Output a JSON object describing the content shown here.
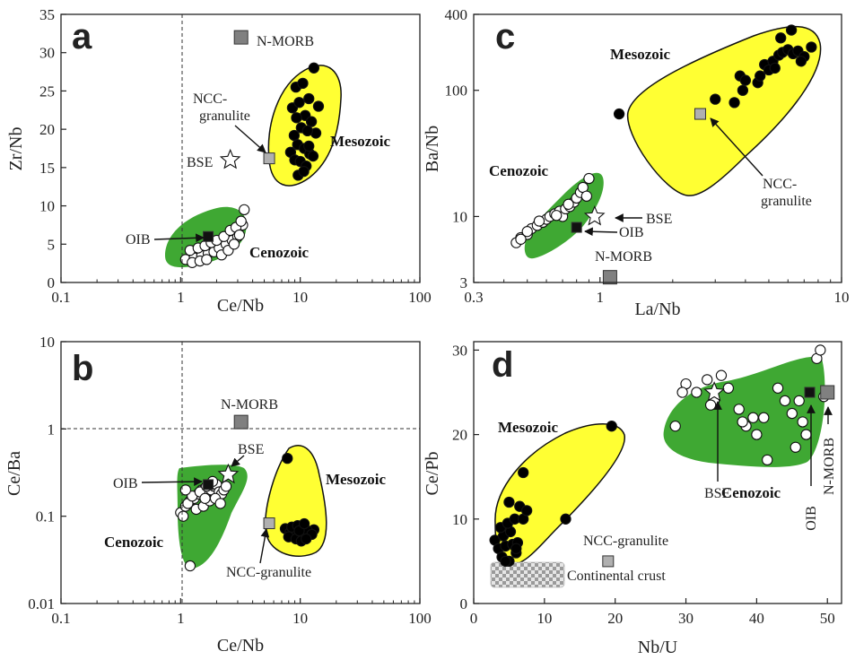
{
  "chart_data": [
    {
      "panel": "a",
      "type": "scatter",
      "xlabel": "Ce/Nb",
      "ylabel": "Zr/Nb",
      "xscale": "log",
      "xlim": [
        0.1,
        100
      ],
      "ylim": [
        0,
        35
      ],
      "x_ticks": [
        "0.1",
        "1",
        "10",
        "100"
      ],
      "y_ticks": [
        "0",
        "5",
        "10",
        "15",
        "20",
        "25",
        "30",
        "35"
      ],
      "reference_lines": [
        {
          "axis": "x",
          "value": 1
        }
      ],
      "series": [
        {
          "name": "Mesozoic",
          "fill": "#000000",
          "x": [
            9.2,
            10.5,
            11.8,
            8.6,
            9.8,
            11.0,
            12.4,
            13.5,
            8.9,
            10.2,
            11.5,
            9.5,
            10.8,
            12.0,
            8.3,
            9.0,
            10.0,
            11.2,
            9.6,
            10.7,
            12.8,
            14.2,
            13.0,
            9.3,
            11.8
          ],
          "y": [
            25.5,
            26.0,
            24.0,
            22.8,
            23.5,
            21.8,
            21.0,
            19.5,
            19.2,
            20.2,
            19.8,
            18.0,
            17.5,
            16.8,
            17.0,
            16.0,
            15.8,
            15.2,
            14.0,
            14.5,
            16.5,
            23.0,
            28.0,
            21.5,
            17.8
          ]
        },
        {
          "name": "Cenozoic",
          "fill": "#ffffff",
          "x": [
            1.1,
            1.3,
            1.5,
            1.7,
            1.9,
            2.1,
            2.4,
            2.7,
            3.0,
            3.3,
            1.2,
            1.4,
            1.6,
            1.8,
            2.0,
            2.3,
            2.6,
            2.9,
            3.2,
            1.25,
            1.45,
            1.65,
            2.2,
            2.5,
            2.8,
            3.1,
            3.4
          ],
          "y": [
            3.0,
            3.2,
            3.5,
            3.8,
            4.0,
            4.5,
            5.0,
            5.5,
            6.0,
            7.5,
            4.2,
            4.5,
            4.8,
            5.2,
            5.5,
            6.0,
            6.8,
            7.2,
            8.0,
            2.6,
            2.8,
            3.0,
            3.6,
            4.2,
            5.0,
            6.2,
            9.5
          ]
        }
      ],
      "references": [
        {
          "label": "N-MORB",
          "x": 3.2,
          "y": 32,
          "marker": "square",
          "fill": "#808080"
        },
        {
          "label": "NCC-granulite",
          "x": 5.5,
          "y": 16.2,
          "marker": "square",
          "fill": "#b0b0b0"
        },
        {
          "label": "BSE",
          "x": 2.6,
          "y": 16.0,
          "marker": "star",
          "fill": "#ffffff"
        },
        {
          "label": "OIB",
          "x": 1.7,
          "y": 6.0,
          "marker": "square",
          "fill": "#111111"
        }
      ],
      "regions": [
        "Mesozoic",
        "Cenozoic"
      ]
    },
    {
      "panel": "b",
      "type": "scatter",
      "xlabel": "Ce/Nb",
      "ylabel": "Ce/Ba",
      "xscale": "log",
      "yscale": "log",
      "xlim": [
        0.1,
        100
      ],
      "ylim": [
        0.01,
        10
      ],
      "x_ticks": [
        "0.1",
        "1",
        "10",
        "100"
      ],
      "y_ticks": [
        "0.01",
        "0.1",
        "1",
        "10"
      ],
      "reference_lines": [
        {
          "axis": "x",
          "value": 1
        },
        {
          "axis": "y",
          "value": 1
        }
      ],
      "series": [
        {
          "name": "Mesozoic",
          "fill": "#000000",
          "x": [
            7.5,
            8.2,
            9.0,
            10.0,
            11.0,
            12.0,
            13.0,
            8.5,
            9.5,
            10.5,
            11.5,
            12.5,
            8.0,
            9.2,
            10.2,
            11.2,
            9.8,
            10.8,
            7.8
          ],
          "y": [
            0.072,
            0.065,
            0.062,
            0.058,
            0.06,
            0.065,
            0.07,
            0.075,
            0.078,
            0.072,
            0.068,
            0.062,
            0.058,
            0.055,
            0.052,
            0.055,
            0.068,
            0.082,
            0.46
          ]
        },
        {
          "name": "Cenozoic",
          "fill": "#ffffff",
          "x": [
            1.0,
            1.1,
            1.2,
            1.3,
            1.4,
            1.5,
            1.6,
            1.7,
            1.8,
            1.9,
            2.0,
            2.1,
            2.2,
            2.3,
            2.4,
            1.05,
            1.15,
            1.35,
            1.55,
            1.75,
            1.95,
            2.15,
            1.25,
            1.45,
            1.65,
            1.85,
            1.1,
            1.6,
            1.2
          ],
          "y": [
            0.11,
            0.13,
            0.15,
            0.16,
            0.18,
            0.2,
            0.21,
            0.19,
            0.2,
            0.22,
            0.23,
            0.19,
            0.18,
            0.2,
            0.22,
            0.1,
            0.14,
            0.12,
            0.13,
            0.15,
            0.16,
            0.14,
            0.17,
            0.19,
            0.22,
            0.25,
            0.2,
            0.16,
            0.027
          ]
        }
      ],
      "references": [
        {
          "label": "N-MORB",
          "x": 3.2,
          "y": 1.2,
          "marker": "square",
          "fill": "#808080"
        },
        {
          "label": "BSE",
          "x": 2.5,
          "y": 0.3,
          "marker": "star",
          "fill": "#ffffff"
        },
        {
          "label": "OIB",
          "x": 1.7,
          "y": 0.23,
          "marker": "square",
          "fill": "#111111"
        },
        {
          "label": "NCC-granulite",
          "x": 5.5,
          "y": 0.083,
          "marker": "square",
          "fill": "#b0b0b0"
        }
      ],
      "regions": [
        "Mesozoic",
        "Cenozoic"
      ]
    },
    {
      "panel": "c",
      "type": "scatter",
      "xlabel": "La/Nb",
      "ylabel": "Ba/Nb",
      "xscale": "log",
      "yscale": "log",
      "xlim": [
        0.3,
        10
      ],
      "ylim": [
        3,
        400
      ],
      "x_ticks": [
        "0.3",
        "1",
        "10"
      ],
      "y_ticks": [
        "3",
        "10",
        "100",
        "400"
      ],
      "series": [
        {
          "name": "Mesozoic",
          "fill": "#000000",
          "x": [
            1.2,
            3.0,
            3.6,
            3.8,
            4.0,
            4.5,
            4.8,
            5.0,
            5.2,
            5.5,
            5.7,
            6.0,
            6.3,
            6.6,
            7.0,
            7.5,
            6.2,
            5.6,
            3.9,
            4.6,
            6.8,
            5.3
          ],
          "y": [
            65,
            85,
            80,
            130,
            120,
            115,
            160,
            145,
            170,
            190,
            200,
            210,
            195,
            205,
            185,
            220,
            300,
            260,
            100,
            130,
            170,
            150
          ]
        },
        {
          "name": "Cenozoic",
          "fill": "#ffffff",
          "x": [
            0.45,
            0.47,
            0.5,
            0.52,
            0.55,
            0.58,
            0.6,
            0.62,
            0.65,
            0.68,
            0.7,
            0.72,
            0.75,
            0.78,
            0.8,
            0.83,
            0.85,
            0.9,
            0.5,
            0.56,
            0.66,
            0.74,
            0.88,
            0.47
          ],
          "y": [
            6.2,
            6.8,
            7.2,
            8.0,
            8.5,
            9.0,
            9.5,
            10.0,
            10.5,
            11.0,
            10.0,
            11.5,
            12.0,
            13.0,
            14.0,
            15.5,
            17.0,
            20.0,
            7.6,
            9.2,
            10.2,
            12.5,
            14.5,
            6.6
          ]
        }
      ],
      "references": [
        {
          "label": "NCC-granulite",
          "x": 2.6,
          "y": 65,
          "marker": "square",
          "fill": "#b0b0b0"
        },
        {
          "label": "BSE",
          "x": 0.95,
          "y": 10,
          "marker": "star",
          "fill": "#ffffff"
        },
        {
          "label": "OIB",
          "x": 0.8,
          "y": 8.2,
          "marker": "square",
          "fill": "#111111"
        },
        {
          "label": "N-MORB",
          "x": 1.1,
          "y": 3.3,
          "marker": "square",
          "fill": "#808080"
        }
      ],
      "regions": [
        "Mesozoic",
        "Cenozoic"
      ]
    },
    {
      "panel": "d",
      "type": "scatter",
      "xlabel": "Nb/U",
      "ylabel": "Ce/Pb",
      "xlim": [
        0,
        52
      ],
      "ylim": [
        0,
        31
      ],
      "x_ticks": [
        "0",
        "10",
        "20",
        "30",
        "40",
        "50"
      ],
      "y_ticks": [
        "0",
        "10",
        "20",
        "30"
      ],
      "series": [
        {
          "name": "Mesozoic",
          "fill": "#000000",
          "x": [
            3.0,
            3.5,
            4.0,
            4.5,
            5.0,
            5.5,
            6.0,
            4.2,
            5.2,
            6.2,
            3.8,
            4.8,
            5.8,
            6.5,
            7.0,
            7.5,
            5.0,
            7.0,
            13.0,
            19.5,
            4.5,
            6.0
          ],
          "y": [
            7.5,
            6.5,
            5.5,
            6.8,
            5.0,
            7.0,
            6.0,
            8.0,
            8.5,
            7.2,
            9.0,
            9.5,
            10.0,
            11.5,
            10.0,
            11.0,
            12.0,
            15.5,
            10.0,
            21.0,
            5.0,
            6.5
          ]
        },
        {
          "name": "Cenozoic",
          "fill": "#ffffff",
          "x": [
            28.5,
            30.0,
            31.5,
            33.0,
            34.0,
            35.0,
            36.0,
            37.5,
            38.5,
            39.5,
            40.0,
            41.5,
            43.0,
            44.0,
            45.0,
            46.0,
            46.5,
            47.0,
            48.5,
            49.0,
            49.5,
            33.5,
            38.0,
            41.0,
            45.5,
            29.5
          ],
          "y": [
            21.0,
            26.0,
            25.0,
            26.5,
            24.0,
            27.0,
            25.5,
            23.0,
            21.0,
            22.0,
            20.0,
            17.0,
            25.5,
            24.0,
            22.5,
            24.0,
            21.5,
            20.0,
            29.0,
            30.0,
            24.5,
            23.5,
            21.5,
            22.0,
            18.5,
            25.0
          ]
        }
      ],
      "references": [
        {
          "label": "BSE",
          "x": 34.0,
          "y": 25.0,
          "marker": "star",
          "fill": "#ffffff"
        },
        {
          "label": "OIB",
          "x": 47.5,
          "y": 25.0,
          "marker": "square",
          "fill": "#111111"
        },
        {
          "label": "N-MORB",
          "x": 50.0,
          "y": 25.0,
          "marker": "square",
          "fill": "#808080"
        },
        {
          "label": "NCC-granulite",
          "x": 19.0,
          "y": 5.0,
          "marker": "square",
          "fill": "#b0b0b0"
        }
      ],
      "fields": [
        {
          "label": "Continental crust",
          "x": [
            2,
            12
          ],
          "y": [
            1.5,
            4.5
          ]
        }
      ],
      "regions": [
        "Mesozoic",
        "Cenozoic"
      ]
    }
  ],
  "colors": {
    "mesozoic_field": "#ffff33",
    "cenozoic_field": "#3fa833",
    "axis": "#222222",
    "nmorb": "#808080",
    "granulite": "#b0b0b0"
  }
}
